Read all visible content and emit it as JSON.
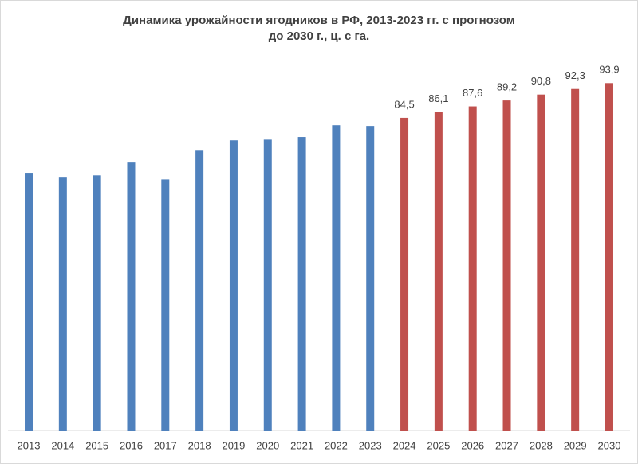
{
  "chart_data": {
    "type": "bar",
    "title": "Динамика урожайности ягодников в РФ, 2013-2023 гг. с прогнозом",
    "subtitle": "до 2030 г., ц. с га.",
    "categories": [
      "2013",
      "2014",
      "2015",
      "2016",
      "2017",
      "2018",
      "2019",
      "2020",
      "2021",
      "2022",
      "2023",
      "2024",
      "2025",
      "2026",
      "2027",
      "2028",
      "2029",
      "2030"
    ],
    "values": [
      69.6,
      68.5,
      68.9,
      72.6,
      67.8,
      75.8,
      78.4,
      78.8,
      79.3,
      82.5,
      82.3,
      84.5,
      86.1,
      87.6,
      89.2,
      90.8,
      92.3,
      93.9
    ],
    "value_labels": [
      null,
      null,
      null,
      null,
      null,
      null,
      null,
      null,
      null,
      null,
      null,
      "84,5",
      "86,1",
      "87,6",
      "89,2",
      "90,8",
      "92,3",
      "93,9"
    ],
    "colors": [
      "#4f81bd",
      "#4f81bd",
      "#4f81bd",
      "#4f81bd",
      "#4f81bd",
      "#4f81bd",
      "#4f81bd",
      "#4f81bd",
      "#4f81bd",
      "#4f81bd",
      "#4f81bd",
      "#c0504d",
      "#c0504d",
      "#c0504d",
      "#c0504d",
      "#c0504d",
      "#c0504d",
      "#c0504d"
    ],
    "ylim": [
      0,
      100
    ]
  }
}
